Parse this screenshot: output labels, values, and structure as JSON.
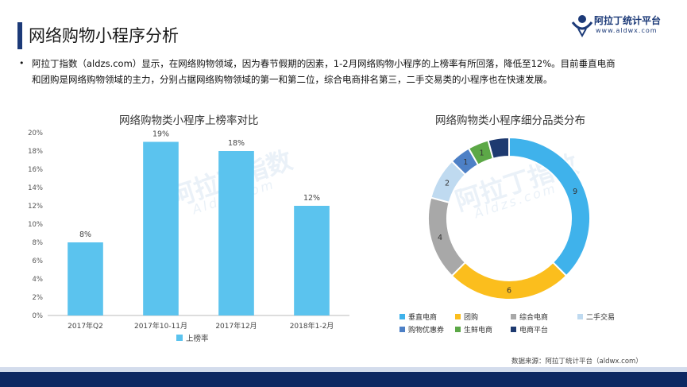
{
  "page_title": "网络购物小程序分析",
  "logo": {
    "name": "阿拉丁统计平台",
    "url": "www.aldwx.com"
  },
  "intro": {
    "bullet": "•",
    "text": "阿拉丁指数（aldzs.com）显示，在网络购物领域，因为春节假期的因素，1-2月网络购物小程序的上榜率有所回落，降低至12%。目前垂直电商和团购是网络购物领域的主力，分别占据网络购物领域的第一和第二位，综合电商排名第三，二手交易类的小程序也在快速发展。"
  },
  "watermark": {
    "text": "阿拉丁指数",
    "sub": "Aldzs.com"
  },
  "chart_data": [
    {
      "type": "bar",
      "title": "网络购物类小程序上榜率对比",
      "categories": [
        "2017年Q2",
        "2017年10-11月",
        "2017年12月",
        "2018年1-2月"
      ],
      "values": [
        8,
        19,
        18,
        12
      ],
      "value_labels": [
        "8%",
        "19%",
        "18%",
        "12%"
      ],
      "ylim": [
        0,
        20
      ],
      "yticks": [
        "0%",
        "2%",
        "4%",
        "6%",
        "8%",
        "10%",
        "12%",
        "14%",
        "16%",
        "18%",
        "20%"
      ],
      "grid": false,
      "legend": {
        "position": "bottom",
        "entries": [
          "上榜率"
        ]
      },
      "color": "#5bc3ee"
    },
    {
      "type": "pie",
      "donut": true,
      "title": "网络购物类小程序细分品类分布",
      "series": [
        {
          "name": "垂直电商",
          "value": 9,
          "label": "9",
          "color": "#3fb2eb"
        },
        {
          "name": "团购",
          "value": 6,
          "label": "6",
          "color": "#fbbe1d"
        },
        {
          "name": "综合电商",
          "value": 4,
          "label": "4",
          "color": "#a8a8a8"
        },
        {
          "name": "二手交易",
          "value": 2,
          "label": "2",
          "color": "#bfdaf0"
        },
        {
          "name": "购物优惠券",
          "value": 1,
          "label": "1",
          "color": "#4d80c6"
        },
        {
          "name": "生鲜电商",
          "value": 1,
          "label": "1",
          "color": "#5ca847"
        },
        {
          "name": "电商平台",
          "value": 1,
          "label": "",
          "color": "#1e3a70"
        }
      ],
      "legend": {
        "position": "bottom"
      }
    }
  ],
  "source": "数据来源：阿拉丁统计平台（aldwx.com）"
}
